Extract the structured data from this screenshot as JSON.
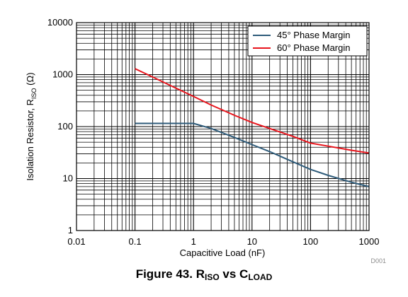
{
  "chart_data": {
    "type": "line",
    "xscale": "log",
    "yscale": "log",
    "xlim": [
      0.01,
      1000
    ],
    "ylim": [
      1,
      10000
    ],
    "xlabel": "Capacitive Load (nF)",
    "ylabel_main": "Isolation Resistor, R",
    "ylabel_sub": "ISO",
    "ylabel_unit": " (Ω)",
    "x_ticks": [
      "0.01",
      "0.1",
      "1",
      "10",
      "100",
      "1000"
    ],
    "y_ticks": [
      "1",
      "10",
      "100",
      "1000",
      "10000"
    ],
    "grid": true,
    "legend_position": "top-right",
    "series": [
      {
        "name": "45° Phase Margin",
        "color": "#2e5b7a",
        "x": [
          0.1,
          0.2,
          0.5,
          1,
          2,
          5,
          10,
          20,
          50,
          100,
          200,
          500,
          1000
        ],
        "y": [
          115,
          115,
          115,
          115,
          92,
          62,
          45,
          33,
          21,
          15,
          11.5,
          8.5,
          7
        ]
      },
      {
        "name": "60° Phase Margin",
        "color": "#e8141c",
        "x": [
          0.1,
          0.2,
          0.5,
          1,
          2,
          5,
          10,
          20,
          50,
          100,
          200,
          500,
          1000
        ],
        "y": [
          1300,
          900,
          550,
          380,
          260,
          165,
          120,
          92,
          65,
          48,
          42,
          35,
          31
        ]
      }
    ]
  },
  "figure_code": "D001",
  "caption": {
    "prefix": "Figure 43.  R",
    "sub1": "ISO",
    "middle": " vs C",
    "sub2": "LOAD"
  }
}
